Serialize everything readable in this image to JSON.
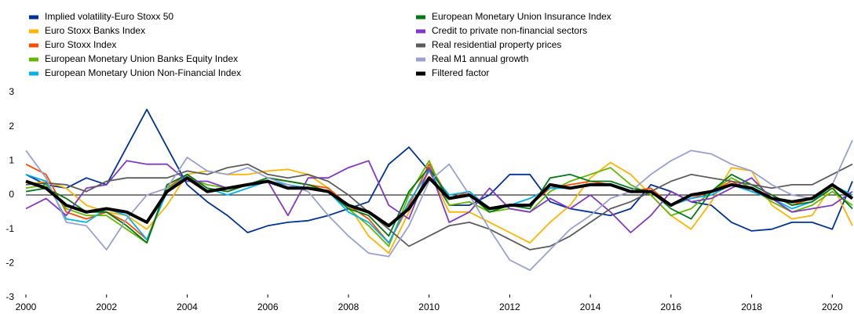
{
  "chart_data": {
    "type": "line",
    "x": [
      2000,
      2000.5,
      2001,
      2001.5,
      2002,
      2002.5,
      2003,
      2003.5,
      2004,
      2004.5,
      2005,
      2005.5,
      2006,
      2006.5,
      2007,
      2007.5,
      2008,
      2008.5,
      2009,
      2009.5,
      2010,
      2010.5,
      2011,
      2011.5,
      2012,
      2012.5,
      2013,
      2013.5,
      2014,
      2014.5,
      2015,
      2015.5,
      2016,
      2016.5,
      2017,
      2017.5,
      2018,
      2018.5,
      2019,
      2019.5,
      2020,
      2020.5
    ],
    "xlim": [
      2000,
      2020.5
    ],
    "xticks": [
      2000,
      2002,
      2004,
      2006,
      2008,
      2010,
      2012,
      2014,
      2016,
      2018,
      2020
    ],
    "ylim": [
      -3,
      3
    ],
    "yticks": [
      -3,
      -2,
      -1,
      0,
      1,
      2,
      3
    ],
    "series": [
      {
        "name": "Implied volatility-Euro Stoxx 50",
        "color": "#003299",
        "values": [
          0.6,
          0.3,
          0.2,
          0.5,
          0.3,
          1.4,
          2.5,
          1.4,
          0.3,
          -0.2,
          -0.6,
          -1.1,
          -0.9,
          -0.8,
          -0.75,
          -0.6,
          -0.4,
          -0.2,
          0.9,
          1.4,
          0.7,
          -0.3,
          -0.3,
          0.0,
          0.6,
          0.6,
          -0.2,
          -0.4,
          -0.5,
          -0.6,
          -0.4,
          0.3,
          0.1,
          -0.2,
          -0.3,
          -0.8,
          -1.05,
          -1.0,
          -0.8,
          -0.8,
          -1.0,
          0.4
        ]
      },
      {
        "name": "Euro Stoxx Banks Index",
        "color": "#ffb400",
        "values": [
          0.3,
          0.4,
          0.2,
          -0.3,
          -0.5,
          -0.6,
          -1.0,
          -0.3,
          0.6,
          0.7,
          0.6,
          0.6,
          0.7,
          0.75,
          0.6,
          0.2,
          -0.3,
          -1.2,
          -1.7,
          -0.5,
          0.7,
          -0.5,
          -0.5,
          -0.8,
          -1.1,
          -1.4,
          -0.8,
          -0.3,
          0.5,
          0.95,
          0.6,
          0.0,
          -0.6,
          -1.0,
          -0.2,
          0.8,
          0.7,
          -0.3,
          -0.7,
          -0.6,
          0.3,
          -0.9
        ]
      },
      {
        "name": "Euro Stoxx Index",
        "color": "#ff4b00",
        "values": [
          0.9,
          0.6,
          -0.5,
          -0.7,
          -0.5,
          -0.8,
          -1.3,
          0.2,
          0.6,
          0.1,
          0.2,
          0.3,
          0.5,
          0.4,
          0.3,
          0.2,
          -0.3,
          -0.7,
          -1.4,
          -0.3,
          0.9,
          -0.1,
          0.1,
          -0.4,
          -0.3,
          -0.3,
          0.2,
          0.3,
          0.4,
          0.3,
          0.1,
          0.2,
          -0.3,
          -0.1,
          0.1,
          0.4,
          0.1,
          0.0,
          -0.3,
          -0.1,
          0.3,
          -0.1
        ]
      },
      {
        "name": "European Monetary Union Banks Equity Index",
        "color": "#65b800",
        "values": [
          0.2,
          0.3,
          -0.4,
          -0.6,
          -0.6,
          -1.0,
          -1.4,
          0.2,
          0.5,
          0.3,
          0.2,
          0.3,
          0.5,
          0.4,
          0.3,
          0.1,
          -0.4,
          -0.9,
          -1.5,
          0.0,
          1.0,
          -0.3,
          -0.2,
          -0.5,
          -0.4,
          -0.5,
          0.1,
          0.4,
          0.6,
          0.8,
          0.3,
          0.0,
          -0.6,
          -0.4,
          0.1,
          0.5,
          0.2,
          -0.2,
          -0.5,
          -0.3,
          0.1,
          -0.3
        ]
      },
      {
        "name": "European Monetary Union Non-Financial Index",
        "color": "#00b1ea",
        "values": [
          0.6,
          0.4,
          -0.7,
          -0.8,
          -0.4,
          -0.6,
          -1.3,
          0.1,
          0.6,
          0.2,
          0.0,
          0.2,
          0.4,
          0.3,
          0.2,
          0.1,
          -0.5,
          -0.8,
          -1.4,
          -0.2,
          0.7,
          0.0,
          0.1,
          -0.4,
          -0.3,
          -0.1,
          0.2,
          0.2,
          0.3,
          0.3,
          0.1,
          0.1,
          -0.3,
          -0.1,
          0.0,
          0.3,
          0.1,
          -0.1,
          -0.4,
          -0.2,
          0.3,
          0.0
        ]
      },
      {
        "name": "European Monetary Union Insurance Index",
        "color": "#007816",
        "values": [
          0.1,
          0.2,
          -0.1,
          -0.5,
          -0.5,
          -0.9,
          -1.4,
          0.3,
          0.6,
          0.2,
          0.1,
          0.3,
          0.5,
          0.4,
          0.3,
          0.1,
          -0.4,
          -0.6,
          -1.2,
          0.1,
          0.8,
          -0.1,
          0.0,
          -0.5,
          -0.3,
          -0.4,
          0.5,
          0.6,
          0.4,
          0.4,
          0.2,
          0.1,
          -0.4,
          -0.7,
          0.1,
          0.6,
          0.3,
          0.0,
          -0.3,
          -0.2,
          0.2,
          -0.4
        ]
      },
      {
        "name": "Credit to private non-financial sectors",
        "color": "#8139c6",
        "values": [
          -0.4,
          -0.1,
          -0.6,
          0.2,
          0.3,
          1.0,
          0.9,
          0.9,
          0.4,
          0.4,
          0.2,
          0.3,
          0.4,
          -0.6,
          0.5,
          0.5,
          0.8,
          1.0,
          -0.3,
          -0.7,
          0.8,
          -0.8,
          -0.5,
          0.2,
          -0.4,
          -0.5,
          -0.1,
          -0.4,
          0.0,
          -0.5,
          -1.1,
          -0.6,
          0.1,
          -0.2,
          -0.1,
          0.2,
          0.5,
          -0.1,
          -0.5,
          -0.4,
          -0.3,
          0.1
        ]
      },
      {
        "name": "Real residential property prices",
        "color": "#5c5c5c",
        "values": [
          0.3,
          0.35,
          0.3,
          0.1,
          0.4,
          0.5,
          0.5,
          0.5,
          0.7,
          0.6,
          0.8,
          0.9,
          0.6,
          0.5,
          0.6,
          0.4,
          0.0,
          -0.5,
          -1.0,
          -1.5,
          -1.2,
          -0.9,
          -0.8,
          -1.0,
          -1.3,
          -1.6,
          -1.5,
          -1.2,
          -0.8,
          -0.4,
          -0.2,
          0.1,
          0.4,
          0.6,
          0.5,
          0.4,
          0.3,
          0.2,
          0.3,
          0.3,
          0.6,
          0.9
        ]
      },
      {
        "name": "Real M1 annual growth",
        "color": "#98a1d0",
        "values": [
          1.3,
          0.5,
          -0.8,
          -0.9,
          -1.6,
          -0.7,
          0.0,
          0.2,
          1.1,
          0.7,
          0.6,
          0.8,
          0.5,
          0.3,
          0.1,
          -0.6,
          -1.2,
          -1.7,
          -1.8,
          -0.9,
          0.4,
          0.9,
          0.0,
          -1.0,
          -1.9,
          -2.2,
          -1.6,
          -1.0,
          -0.6,
          -0.1,
          0.1,
          0.6,
          1.0,
          1.3,
          1.2,
          0.9,
          0.7,
          0.3,
          0.0,
          -0.1,
          0.3,
          1.6
        ]
      },
      {
        "name": "Filtered factor",
        "color": "#000000",
        "values": [
          0.4,
          0.2,
          -0.3,
          -0.5,
          -0.4,
          -0.5,
          -0.8,
          0.1,
          0.5,
          0.1,
          0.2,
          0.3,
          0.4,
          0.2,
          0.2,
          0.1,
          -0.3,
          -0.5,
          -0.9,
          -0.4,
          0.5,
          -0.1,
          0.0,
          -0.4,
          -0.3,
          -0.3,
          0.3,
          0.2,
          0.3,
          0.3,
          0.1,
          0.1,
          -0.3,
          0.0,
          0.1,
          0.3,
          0.2,
          -0.1,
          -0.2,
          -0.1,
          0.3,
          -0.1
        ]
      }
    ]
  }
}
